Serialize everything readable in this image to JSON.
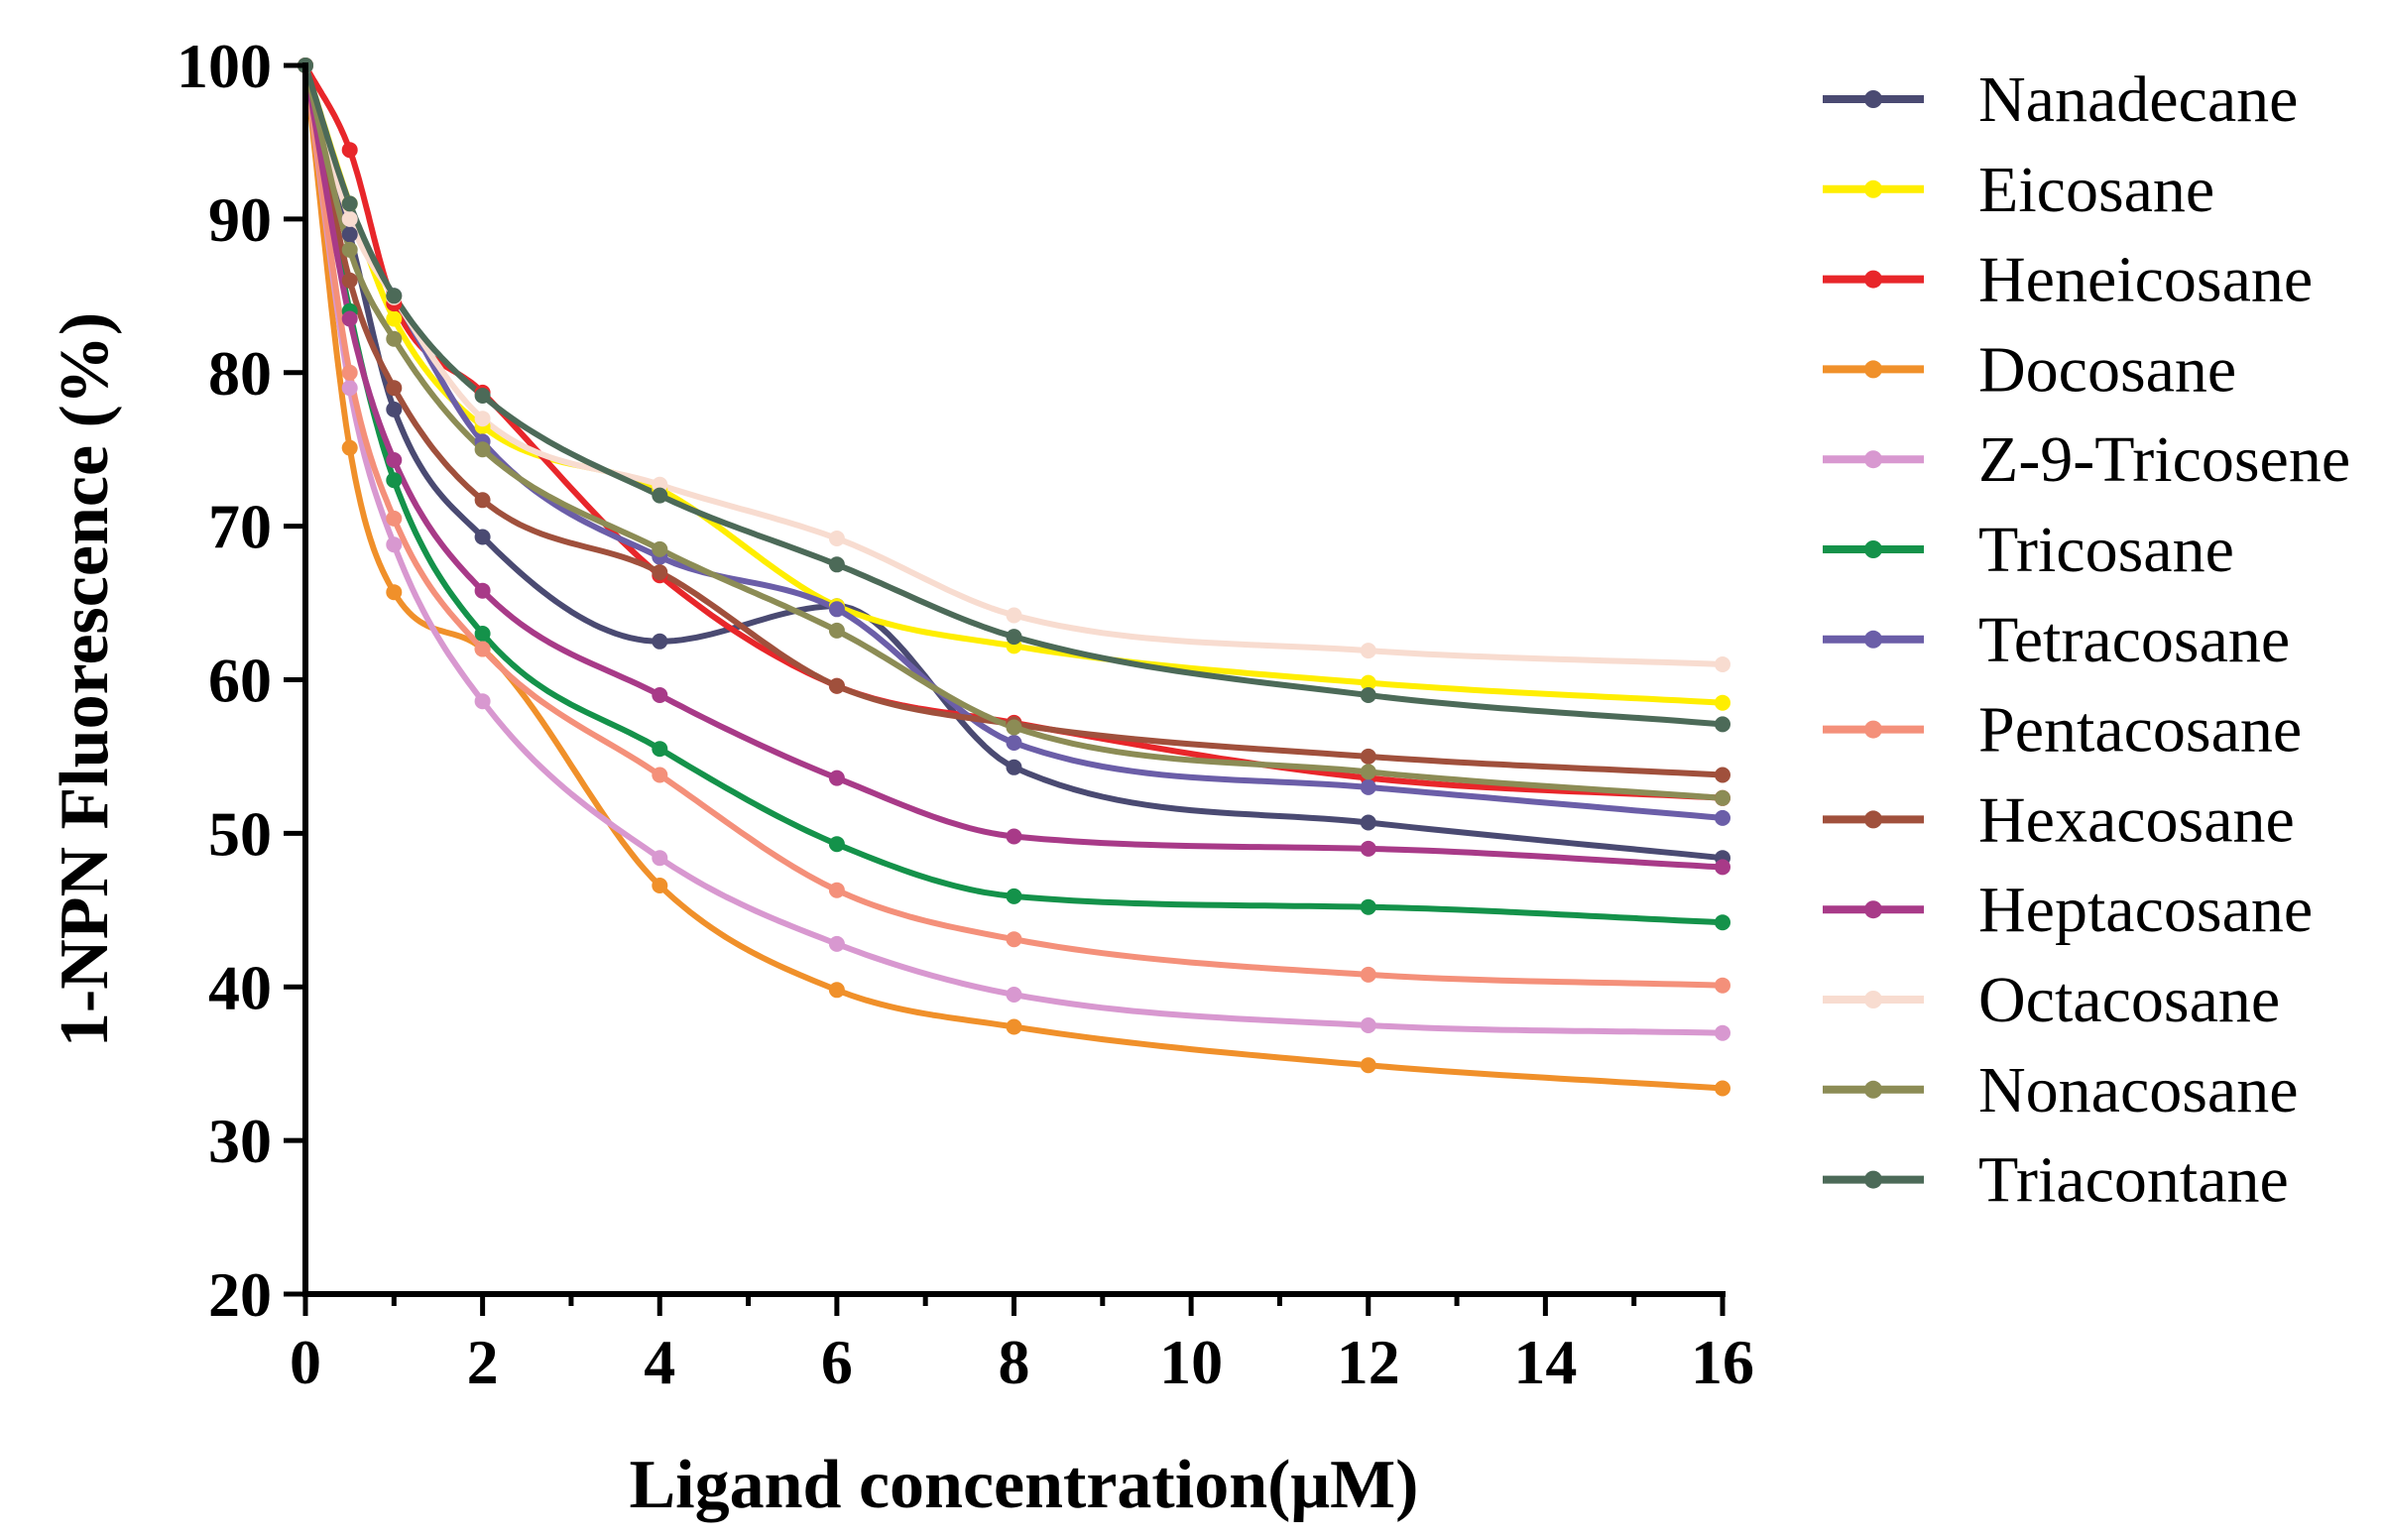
{
  "chart_data": {
    "type": "scatter",
    "xlabel": "Ligand concentration(μM)",
    "ylabel": "1-NPN Fluorescence (%)",
    "xlim": [
      0,
      16
    ],
    "ylim": [
      20,
      100
    ],
    "xticks": [
      0,
      2,
      4,
      6,
      8,
      10,
      12,
      14,
      16
    ],
    "yticks": [
      20,
      30,
      40,
      50,
      60,
      70,
      80,
      90,
      100
    ],
    "x": [
      0,
      0.5,
      1,
      2,
      4,
      6,
      8,
      12,
      16
    ],
    "grid": false,
    "legend": "right",
    "series": [
      {
        "name": "Nanadecane",
        "color": "#4a4a72",
        "values": [
          100,
          89.0,
          77.6,
          69.3,
          62.5,
          64.8,
          54.3,
          50.7,
          48.4
        ]
      },
      {
        "name": "Eicosane",
        "color": "#ffee00",
        "values": [
          100,
          91.0,
          83.5,
          76.5,
          72.4,
          64.8,
          62.2,
          59.8,
          58.5
        ]
      },
      {
        "name": "Heneicosane",
        "color": "#e8262a",
        "values": [
          100,
          94.5,
          84.5,
          78.7,
          66.8,
          59.6,
          57.2,
          53.6,
          52.3
        ]
      },
      {
        "name": "Docosane",
        "color": "#f0902a",
        "values": [
          100,
          75.1,
          65.7,
          62.0,
          46.6,
          39.8,
          37.4,
          34.9,
          33.4
        ]
      },
      {
        "name": "Z-9-Tricosene",
        "color": "#d898d0",
        "values": [
          100,
          79.0,
          68.8,
          58.6,
          48.4,
          42.8,
          39.5,
          37.5,
          37.0
        ]
      },
      {
        "name": "Tricosane",
        "color": "#14924a",
        "values": [
          100,
          84.0,
          73.0,
          63.0,
          55.5,
          49.3,
          45.9,
          45.2,
          44.2
        ]
      },
      {
        "name": "Tetracosane",
        "color": "#6b5ea8",
        "values": [
          100,
          90.0,
          85.0,
          75.5,
          68.0,
          64.6,
          55.9,
          53.0,
          51.0
        ]
      },
      {
        "name": "Pentacosane",
        "color": "#f4907a",
        "values": [
          100,
          80.0,
          70.5,
          62.0,
          53.8,
          46.3,
          43.1,
          40.8,
          40.1
        ]
      },
      {
        "name": "Hexacosane",
        "color": "#a0503c",
        "values": [
          100,
          86.0,
          79.0,
          71.7,
          67.0,
          59.6,
          57.1,
          55.0,
          53.8
        ]
      },
      {
        "name": "Heptacosane",
        "color": "#a83a88",
        "values": [
          100,
          83.5,
          74.3,
          65.8,
          59.0,
          53.6,
          49.8,
          49.0,
          47.8
        ]
      },
      {
        "name": "Octacosane",
        "color": "#f8dcd0",
        "values": [
          100,
          90.0,
          84.9,
          77.0,
          72.7,
          69.2,
          64.2,
          61.9,
          61.0
        ]
      },
      {
        "name": "Nonacosane",
        "color": "#8c8c55",
        "values": [
          100,
          88.0,
          82.2,
          75.0,
          68.5,
          63.2,
          56.9,
          54.0,
          52.3
        ]
      },
      {
        "name": "Triacontane",
        "color": "#4c6a58",
        "values": [
          100,
          91.0,
          85.0,
          78.5,
          72.0,
          67.5,
          62.8,
          59.0,
          57.1
        ]
      }
    ]
  }
}
